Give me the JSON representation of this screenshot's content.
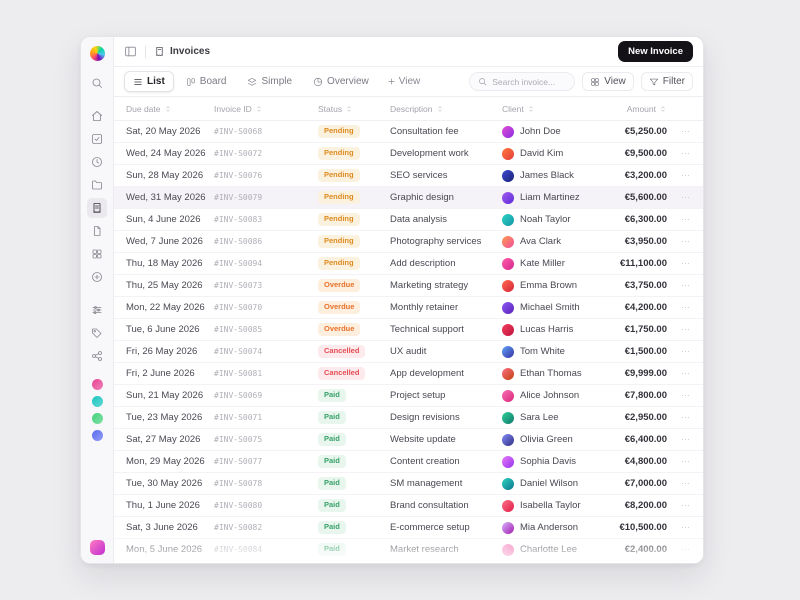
{
  "topbar": {
    "breadcrumb": "Invoices",
    "new_invoice_label": "New Invoice"
  },
  "toolbar": {
    "tabs": [
      {
        "label": "List",
        "active": true
      },
      {
        "label": "Board",
        "active": false
      },
      {
        "label": "Simple",
        "active": false
      },
      {
        "label": "Overview",
        "active": false
      }
    ],
    "add_view_label": "View",
    "search_placeholder": "Search invoice...",
    "view_button_label": "View",
    "filter_button_label": "Filter"
  },
  "sidebar": {
    "icons": [
      "logo",
      "search",
      "home",
      "tasks",
      "time",
      "folder",
      "invoices",
      "documents",
      "apps",
      "add",
      "sliders",
      "tags",
      "share"
    ],
    "active_icon": "invoices",
    "avatar_colors": [
      "#e84393",
      "#18c5c0",
      "#43d17a",
      "#5a6cf0"
    ]
  },
  "status_styles": {
    "Pending": {
      "color": "#dd8b1f",
      "bg": "#fbf1df"
    },
    "Overdue": {
      "color": "#e8722a",
      "bg": "#fdeede"
    },
    "Cancelled": {
      "color": "#e54d54",
      "bg": "#fdeaec"
    },
    "Paid": {
      "color": "#38a169",
      "bg": "#e8f6ee"
    }
  },
  "table": {
    "columns": [
      "Due date",
      "Invoice ID",
      "Status",
      "Description",
      "Client",
      "Amount"
    ],
    "highlighted_row": 3,
    "row_action_label": "⋯",
    "rows": [
      {
        "due_date": "Sat, 20 May 2026",
        "invoice_id": "#INV-S0068",
        "status": "Pending",
        "description": "Consultation fee",
        "client": "John Doe",
        "amount": "€5,250.00",
        "avatar": [
          "#e14fd1",
          "#8a2be2"
        ]
      },
      {
        "due_date": "Wed, 24 May 2026",
        "invoice_id": "#INV-S0072",
        "status": "Pending",
        "description": "Development work",
        "client": "David Kim",
        "amount": "€9,500.00",
        "avatar": [
          "#ff7a3d",
          "#e23a3a"
        ]
      },
      {
        "due_date": "Sun, 28 May 2026",
        "invoice_id": "#INV-S0076",
        "status": "Pending",
        "description": "SEO services",
        "client": "James Black",
        "amount": "€3,200.00",
        "avatar": [
          "#3b4bd8",
          "#1b2370"
        ]
      },
      {
        "due_date": "Wed, 31 May 2026",
        "invoice_id": "#INV-S0079",
        "status": "Pending",
        "description": "Graphic design",
        "client": "Liam Martinez",
        "amount": "€5,600.00",
        "avatar": [
          "#a45cf0",
          "#5b2bd6"
        ]
      },
      {
        "due_date": "Sun, 4 June 2026",
        "invoice_id": "#INV-S0083",
        "status": "Pending",
        "description": "Data analysis",
        "client": "Noah Taylor",
        "amount": "€6,300.00",
        "avatar": [
          "#2fd4c2",
          "#1493a8"
        ]
      },
      {
        "due_date": "Wed, 7 June 2026",
        "invoice_id": "#INV-S0086",
        "status": "Pending",
        "description": "Photography services",
        "client": "Ava Clark",
        "amount": "€3,950.00",
        "avatar": [
          "#ff9a4d",
          "#f04f9e"
        ]
      },
      {
        "due_date": "Thu, 18 May 2026",
        "invoice_id": "#INV-S0094",
        "status": "Pending",
        "description": "Add description",
        "client": "Kate Miller",
        "amount": "€11,100.00",
        "avatar": [
          "#ff5fa8",
          "#d6248f"
        ]
      },
      {
        "due_date": "Thu, 25 May 2026",
        "invoice_id": "#INV-S0073",
        "status": "Overdue",
        "description": "Marketing strategy",
        "client": "Emma Brown",
        "amount": "€3,750.00",
        "avatar": [
          "#ff6a4d",
          "#d62438"
        ]
      },
      {
        "due_date": "Mon, 22 May 2026",
        "invoice_id": "#INV-S0070",
        "status": "Overdue",
        "description": "Monthly retainer",
        "client": "Michael Smith",
        "amount": "€4,200.00",
        "avatar": [
          "#8b5cf6",
          "#5b21b6"
        ]
      },
      {
        "due_date": "Tue, 6 June 2026",
        "invoice_id": "#INV-S0085",
        "status": "Overdue",
        "description": "Technical support",
        "client": "Lucas Harris",
        "amount": "€1,750.00",
        "avatar": [
          "#f43f5e",
          "#be123c"
        ]
      },
      {
        "due_date": "Fri, 26 May 2026",
        "invoice_id": "#INV-S0074",
        "status": "Cancelled",
        "description": "UX audit",
        "client": "Tom White",
        "amount": "€1,500.00",
        "avatar": [
          "#60a5fa",
          "#3730a3"
        ]
      },
      {
        "due_date": "Fri, 2 June 2026",
        "invoice_id": "#INV-S0081",
        "status": "Cancelled",
        "description": "App development",
        "client": "Ethan Thomas",
        "amount": "€9,999.00",
        "avatar": [
          "#fb7185",
          "#c2410c"
        ]
      },
      {
        "due_date": "Sun, 21 May 2026",
        "invoice_id": "#INV-S0069",
        "status": "Paid",
        "description": "Project setup",
        "client": "Alice Johnson",
        "amount": "€7,800.00",
        "avatar": [
          "#f472b6",
          "#db2777"
        ]
      },
      {
        "due_date": "Tue, 23 May 2026",
        "invoice_id": "#INV-S0071",
        "status": "Paid",
        "description": "Design revisions",
        "client": "Sara Lee",
        "amount": "€2,950.00",
        "avatar": [
          "#34d399",
          "#0f766e"
        ]
      },
      {
        "due_date": "Sat, 27 May 2026",
        "invoice_id": "#INV-S0075",
        "status": "Paid",
        "description": "Website update",
        "client": "Olivia Green",
        "amount": "€6,400.00",
        "avatar": [
          "#818cf8",
          "#312e81"
        ]
      },
      {
        "due_date": "Mon, 29 May 2026",
        "invoice_id": "#INV-S0077",
        "status": "Paid",
        "description": "Content creation",
        "client": "Sophia Davis",
        "amount": "€4,800.00",
        "avatar": [
          "#e879f9",
          "#9333ea"
        ]
      },
      {
        "due_date": "Tue, 30 May 2026",
        "invoice_id": "#INV-S0078",
        "status": "Paid",
        "description": "SM management",
        "client": "Daniel Wilson",
        "amount": "€7,000.00",
        "avatar": [
          "#2dd4bf",
          "#0e7490"
        ]
      },
      {
        "due_date": "Thu, 1 June 2026",
        "invoice_id": "#INV-S0080",
        "status": "Paid",
        "description": "Brand consultation",
        "client": "Isabella Taylor",
        "amount": "€8,200.00",
        "avatar": [
          "#fb7185",
          "#e11d48"
        ]
      },
      {
        "due_date": "Sat, 3 June 2026",
        "invoice_id": "#INV-S0082",
        "status": "Paid",
        "description": "E-commerce setup",
        "client": "Mia Anderson",
        "amount": "€10,500.00",
        "avatar": [
          "#d8b4fe",
          "#a21caf"
        ]
      },
      {
        "due_date": "Mon, 5 June 2026",
        "invoice_id": "#INV-S0084",
        "status": "Paid",
        "description": "Market research",
        "client": "Charlotte Lee",
        "amount": "€2,400.00",
        "avatar": [
          "#f9a8d4",
          "#ec4899"
        ]
      }
    ]
  }
}
